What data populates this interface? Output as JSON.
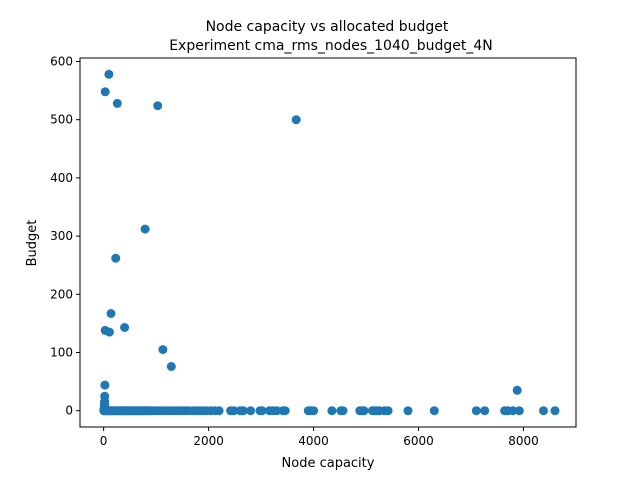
{
  "chart_data": {
    "type": "scatter",
    "title": "Node capacity vs allocated budget",
    "subtitle": "Experiment cma_rms_nodes_1040_budget_4N",
    "xlabel": "Node capacity",
    "ylabel": "Budget",
    "xlim": [
      -450,
      9000
    ],
    "ylim": [
      -28,
      606
    ],
    "xticks": [
      0,
      2000,
      4000,
      6000,
      8000
    ],
    "xtick_labels": [
      "0",
      "2000",
      "4000",
      "6000",
      "8000"
    ],
    "yticks": [
      0,
      100,
      200,
      300,
      400,
      500,
      600
    ],
    "ytick_labels": [
      "0",
      "100",
      "200",
      "300",
      "400",
      "500",
      "600"
    ],
    "grid": false,
    "legend": "none",
    "marker_color": "#1f77b4",
    "series": [
      {
        "x": [
          100,
          30,
          260,
          1030,
          3670,
          790,
          230,
          140,
          30,
          110,
          400,
          1130,
          1290,
          25,
          7880,
          20,
          20,
          15,
          20,
          15,
          20,
          15,
          10,
          10,
          5,
          5,
          15,
          15,
          40,
          60,
          80,
          100,
          120,
          140,
          160,
          180,
          200,
          220,
          240,
          260,
          280,
          300,
          320,
          340,
          360,
          380,
          400,
          420,
          440,
          460,
          480,
          500,
          520,
          540,
          560,
          580,
          600,
          620,
          640,
          660,
          680,
          700,
          720,
          740,
          760,
          780,
          800,
          820,
          840,
          860,
          880,
          920,
          960,
          1000,
          1050,
          1100,
          1150,
          1200,
          1260,
          1320,
          1380,
          1440,
          1500,
          1560,
          1620,
          1700,
          1760,
          1830,
          1900,
          1960,
          2040,
          2120,
          2200,
          2420,
          2480,
          2600,
          2660,
          2800,
          2980,
          3020,
          3160,
          3230,
          3300,
          3420,
          3460,
          3900,
          3950,
          4000,
          4350,
          4520,
          4560,
          4880,
          4920,
          4960,
          5120,
          5160,
          5200,
          5250,
          5350,
          5420,
          5800,
          6300,
          7100,
          7260,
          7640,
          7700,
          7800,
          7920,
          8380,
          8600
        ],
        "y": [
          578,
          548,
          528,
          524,
          500,
          312,
          262,
          167,
          138,
          135,
          143,
          105,
          76,
          44,
          35,
          25,
          16,
          14,
          10,
          8,
          6,
          4,
          3,
          2,
          1,
          0,
          0,
          0,
          0,
          0,
          0,
          0,
          0,
          0,
          0,
          0,
          0,
          0,
          0,
          0,
          0,
          0,
          0,
          0,
          0,
          0,
          0,
          0,
          0,
          0,
          0,
          0,
          0,
          0,
          0,
          0,
          0,
          0,
          0,
          0,
          0,
          0,
          0,
          0,
          0,
          0,
          0,
          0,
          0,
          0,
          0,
          0,
          0,
          0,
          0,
          0,
          0,
          0,
          0,
          0,
          0,
          0,
          0,
          0,
          0,
          0,
          0,
          0,
          0,
          0,
          0,
          0,
          0,
          0,
          0,
          0,
          0,
          0,
          0,
          0,
          0,
          0,
          0,
          0,
          0,
          0,
          0,
          0,
          0,
          0,
          0,
          0,
          0,
          0,
          0,
          0,
          0,
          0,
          0,
          0,
          0,
          0,
          0,
          0,
          0,
          0,
          0,
          0,
          0,
          0
        ]
      }
    ]
  }
}
